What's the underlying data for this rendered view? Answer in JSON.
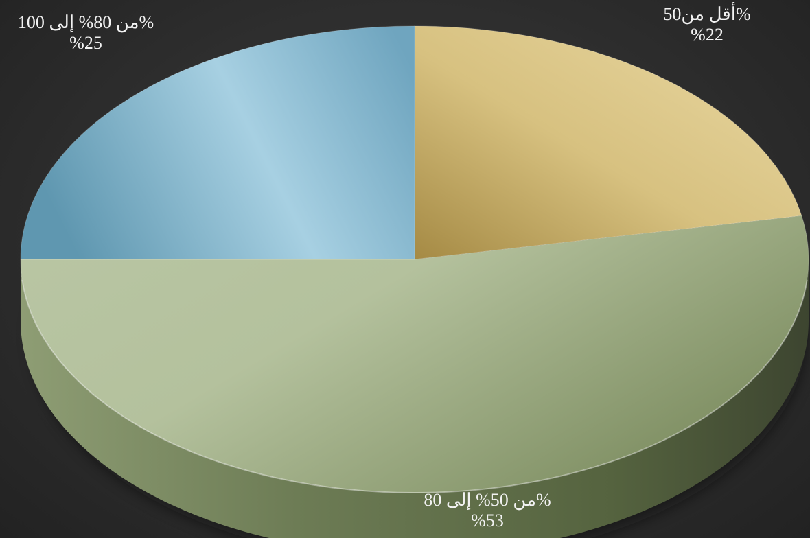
{
  "chart_data": {
    "type": "pie",
    "title": "",
    "style": "3d",
    "slices": [
      {
        "label": "أقل من50%",
        "value": 22,
        "value_label": "%22",
        "color": "#d8c17a"
      },
      {
        "label": "من 50% إلى 80%",
        "value": 53,
        "value_label": "%53",
        "color": "#a9b78f"
      },
      {
        "label": "من 80% إلى 100%",
        "value": 25,
        "value_label": "%25",
        "color": "#84b5cc"
      }
    ]
  }
}
